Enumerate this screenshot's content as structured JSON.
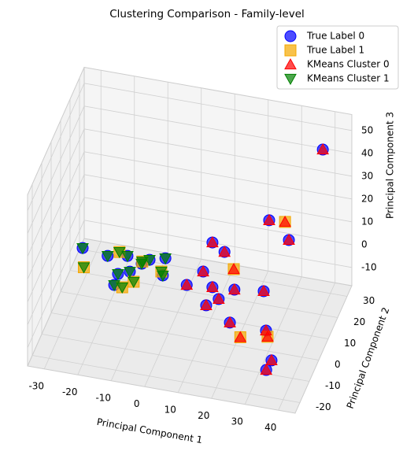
{
  "chart_data": {
    "type": "scatter3d",
    "title": "Clustering Comparison - Family-level",
    "xlabel": "Principal Component 1",
    "ylabel": "Principal Component 2",
    "zlabel": "Principal Component 3",
    "xlim": [
      -35,
      45
    ],
    "ylim": [
      -25,
      35
    ],
    "zlim": [
      -18,
      57
    ],
    "xticks": [
      -30,
      -20,
      -10,
      0,
      10,
      20,
      30,
      40
    ],
    "yticks": [
      -20,
      -10,
      0,
      10,
      20,
      30
    ],
    "zticks": [
      -10,
      0,
      10,
      20,
      30,
      40,
      50
    ],
    "grid": true,
    "legend": "upper right",
    "series": [
      {
        "name": "True Label 0",
        "color": "#0000ff",
        "marker": "circle",
        "x": [
          -29.2,
          -21.3,
          -16.2,
          -15.8,
          -13.2,
          -9.2,
          -5,
          -3.6,
          -15.9,
          -10.9,
          4.2,
          7.1,
          12.1,
          11.6,
          6.1,
          10.6,
          14.8,
          18,
          20.8,
          26.3,
          31.8,
          37,
          35.3,
          21.9,
          29.8,
          36.5
        ],
        "y": [
          12.8,
          11.3,
          4.2,
          12.8,
          6.1,
          12.8,
          14.7,
          7,
          -0.9,
          10.5,
          4.7,
          11.8,
          -2.7,
          5.7,
          25.2,
          22,
          1,
          6.3,
          -8.4,
          7.9,
          -9.1,
          -21.7,
          -21.3,
          29.3,
          22.2,
          34.4
        ],
        "z": [
          0,
          0,
          0,
          0,
          0,
          0,
          0,
          0,
          0,
          0,
          0,
          0,
          0,
          0,
          0,
          0,
          0,
          0,
          0,
          0,
          0,
          0,
          -5,
          10,
          10,
          40
        ]
      },
      {
        "name": "True Label 1",
        "color": "#f5a800",
        "marker": "square",
        "x": [
          -26.5,
          -18.5,
          -11,
          -4.5,
          -13.4,
          -10.9,
          15.3,
          25.5,
          33,
          26.5
        ],
        "y": [
          4.5,
          13.9,
          11.5,
          8.6,
          -1.3,
          2,
          15.2,
          -14,
          -11.7,
          29.8
        ],
        "z": [
          0,
          0,
          0,
          0,
          0,
          0,
          0,
          0,
          0,
          10
        ]
      },
      {
        "name": "KMeans Cluster 0",
        "color": "#ff0000",
        "marker": "triangle-up",
        "x": [
          4.2,
          7.1,
          12.1,
          11.6,
          6.1,
          10.6,
          14.8,
          18,
          20.8,
          26.3,
          31.8,
          37,
          35.3,
          21.9,
          29.8,
          36.5,
          15.3,
          25.5,
          33,
          26.5
        ],
        "y": [
          4.7,
          11.8,
          -2.7,
          5.7,
          25.2,
          22,
          1,
          6.3,
          -8.4,
          7.9,
          -9.1,
          -21.7,
          -21.3,
          29.3,
          22.2,
          34.4,
          15.2,
          -14,
          -11.7,
          29.8
        ],
        "z": [
          0,
          0,
          0,
          0,
          0,
          0,
          0,
          0,
          0,
          0,
          0,
          0,
          -5,
          10,
          10,
          40,
          0,
          0,
          0,
          10
        ]
      },
      {
        "name": "KMeans Cluster 1",
        "color": "#008000",
        "marker": "triangle-down",
        "x": [
          -29.2,
          -21.3,
          -16.2,
          -15.8,
          -13.2,
          -9.2,
          -5,
          -3.6,
          -15.9,
          -10.9,
          -26.5,
          -18.5,
          -11,
          -4.5,
          -13.4,
          -10.9
        ],
        "y": [
          12.8,
          11.3,
          4.2,
          12.8,
          6.1,
          12.8,
          14.7,
          7,
          -0.9,
          10.5,
          4.5,
          13.9,
          11.5,
          8.6,
          -1.3,
          2
        ],
        "z": [
          0,
          0,
          0,
          0,
          0,
          0,
          0,
          0,
          0,
          0,
          0,
          0,
          0,
          0,
          0,
          0
        ]
      }
    ]
  }
}
